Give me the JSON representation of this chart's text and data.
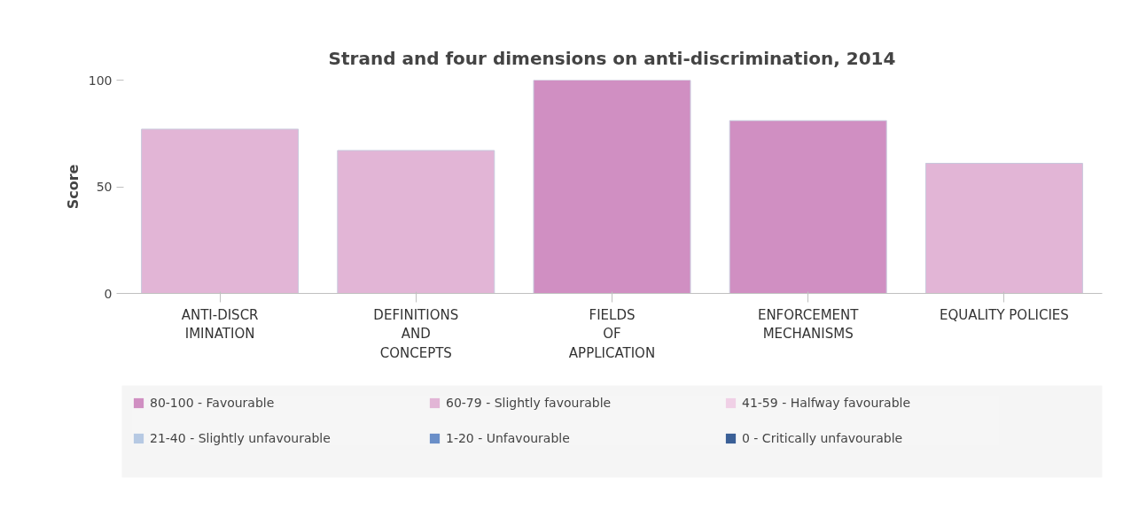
{
  "chart_data": {
    "type": "bar",
    "title": "Strand and four dimensions on anti-discrimination, 2014",
    "ylabel": "Score",
    "categories": [
      "ANTI-DISCR\nIMINATION",
      "DEFINITIONS\nAND\nCONCEPTS",
      "FIELDS\nOF\nAPPLICATION",
      "ENFORCEMENT\nMECHANISMS",
      "EQUALITY POLICIES"
    ],
    "series": [
      {
        "name": "80-100 - Favourable",
        "color": "#d08fc2",
        "values": [
          null,
          null,
          100,
          81,
          null
        ]
      },
      {
        "name": "60-79 - Slightly favourable",
        "color": "#e2b5d6",
        "values": [
          77,
          67,
          null,
          null,
          61
        ]
      },
      {
        "name": "41-59 - Halfway favourable",
        "color": "#f0d0e6",
        "values": [
          null,
          null,
          null,
          null,
          null
        ]
      },
      {
        "name": "21-40 - Slightly unfavourable",
        "color": "#b6c9e3",
        "values": [
          null,
          null,
          null,
          null,
          null
        ]
      },
      {
        "name": "1-20 - Unfavourable",
        "color": "#6a8fc8",
        "values": [
          null,
          null,
          null,
          null,
          null
        ]
      },
      {
        "name": "0 - Critically unfavourable",
        "color": "#3a5f96",
        "values": [
          null,
          null,
          null,
          null,
          null
        ]
      }
    ],
    "ylim": [
      0,
      100
    ],
    "yticks": [
      0,
      50,
      100
    ],
    "grid": false,
    "legend": "bottom"
  }
}
